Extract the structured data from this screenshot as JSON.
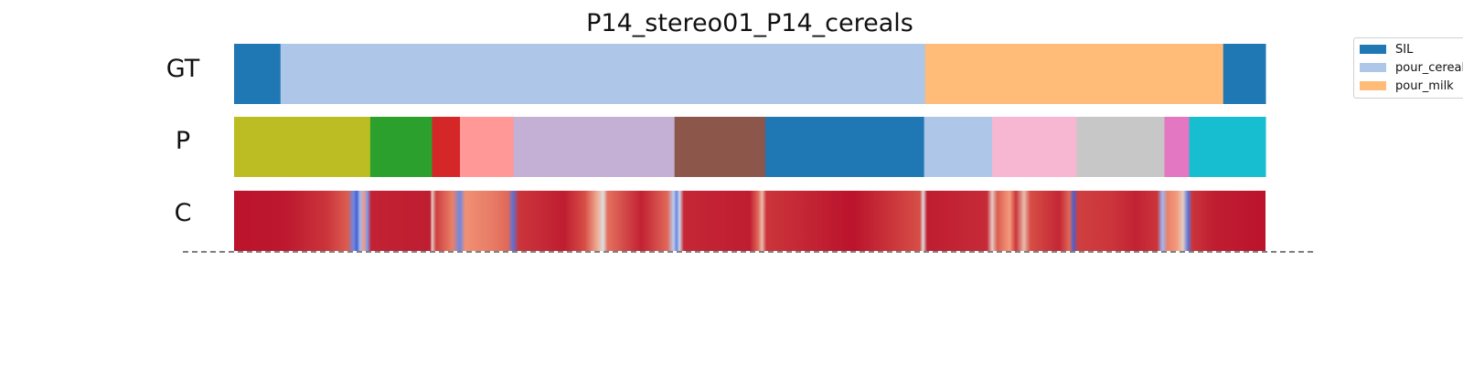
{
  "chart_data": {
    "type": "segmentation",
    "title": "P14_stereo01_P14_cereals",
    "rows": [
      {
        "label": "GT",
        "segments": [
          {
            "start": 0.0,
            "end": 0.045,
            "color": "#1f77b4",
            "legend": "SIL"
          },
          {
            "start": 0.045,
            "end": 0.67,
            "color": "#aec7e8",
            "legend": "pour_cereals"
          },
          {
            "start": 0.67,
            "end": 0.959,
            "color": "#ffbb78",
            "legend": "pour_milk"
          },
          {
            "start": 0.959,
            "end": 1.0,
            "color": "#1f77b4",
            "legend": "SIL"
          }
        ]
      },
      {
        "label": "P",
        "segments": [
          {
            "start": 0.0,
            "end": 0.132,
            "color": "#bcbd22"
          },
          {
            "start": 0.132,
            "end": 0.192,
            "color": "#2ca02c"
          },
          {
            "start": 0.192,
            "end": 0.219,
            "color": "#d62728"
          },
          {
            "start": 0.219,
            "end": 0.271,
            "color": "#ff9896"
          },
          {
            "start": 0.271,
            "end": 0.427,
            "color": "#c5b0d5"
          },
          {
            "start": 0.427,
            "end": 0.515,
            "color": "#8c564b"
          },
          {
            "start": 0.515,
            "end": 0.669,
            "color": "#1f77b4"
          },
          {
            "start": 0.669,
            "end": 0.735,
            "color": "#aec7e8"
          },
          {
            "start": 0.735,
            "end": 0.817,
            "color": "#f7b6d2"
          },
          {
            "start": 0.817,
            "end": 0.902,
            "color": "#c7c7c7"
          },
          {
            "start": 0.902,
            "end": 0.926,
            "color": "#e377c2"
          },
          {
            "start": 0.926,
            "end": 1.0,
            "color": "#17becf"
          }
        ]
      },
      {
        "label": "C",
        "colormap": "coolwarm",
        "confidence": [
          {
            "t": 0.0,
            "v": 0.97
          },
          {
            "t": 0.05,
            "v": 0.96
          },
          {
            "t": 0.09,
            "v": 0.9
          },
          {
            "t": 0.11,
            "v": 0.82
          },
          {
            "t": 0.116,
            "v": 0.15
          },
          {
            "t": 0.119,
            "v": 0.05
          },
          {
            "t": 0.122,
            "v": 0.3
          },
          {
            "t": 0.126,
            "v": 0.7
          },
          {
            "t": 0.129,
            "v": 0.2
          },
          {
            "t": 0.133,
            "v": 0.94
          },
          {
            "t": 0.19,
            "v": 0.95
          },
          {
            "t": 0.192,
            "v": 0.55
          },
          {
            "t": 0.196,
            "v": 0.88
          },
          {
            "t": 0.212,
            "v": 0.75
          },
          {
            "t": 0.219,
            "v": 0.15
          },
          {
            "t": 0.224,
            "v": 0.72
          },
          {
            "t": 0.25,
            "v": 0.76
          },
          {
            "t": 0.266,
            "v": 0.8
          },
          {
            "t": 0.27,
            "v": 0.1
          },
          {
            "t": 0.276,
            "v": 0.9
          },
          {
            "t": 0.32,
            "v": 0.95
          },
          {
            "t": 0.34,
            "v": 0.85
          },
          {
            "t": 0.352,
            "v": 0.65
          },
          {
            "t": 0.358,
            "v": 0.5
          },
          {
            "t": 0.362,
            "v": 0.78
          },
          {
            "t": 0.395,
            "v": 0.94
          },
          {
            "t": 0.42,
            "v": 0.8
          },
          {
            "t": 0.426,
            "v": 0.4
          },
          {
            "t": 0.429,
            "v": 0.15
          },
          {
            "t": 0.432,
            "v": 0.45
          },
          {
            "t": 0.436,
            "v": 0.93
          },
          {
            "t": 0.5,
            "v": 0.95
          },
          {
            "t": 0.508,
            "v": 0.8
          },
          {
            "t": 0.512,
            "v": 0.6
          },
          {
            "t": 0.516,
            "v": 0.9
          },
          {
            "t": 0.6,
            "v": 0.97
          },
          {
            "t": 0.665,
            "v": 0.85
          },
          {
            "t": 0.668,
            "v": 0.5
          },
          {
            "t": 0.672,
            "v": 0.95
          },
          {
            "t": 0.73,
            "v": 0.92
          },
          {
            "t": 0.735,
            "v": 0.55
          },
          {
            "t": 0.74,
            "v": 0.82
          },
          {
            "t": 0.752,
            "v": 0.7
          },
          {
            "t": 0.758,
            "v": 0.9
          },
          {
            "t": 0.766,
            "v": 0.6
          },
          {
            "t": 0.772,
            "v": 0.85
          },
          {
            "t": 0.8,
            "v": 0.93
          },
          {
            "t": 0.81,
            "v": 0.8
          },
          {
            "t": 0.814,
            "v": 0.05
          },
          {
            "t": 0.818,
            "v": 0.88
          },
          {
            "t": 0.85,
            "v": 0.9
          },
          {
            "t": 0.875,
            "v": 0.94
          },
          {
            "t": 0.895,
            "v": 0.9
          },
          {
            "t": 0.9,
            "v": 0.3
          },
          {
            "t": 0.905,
            "v": 0.75
          },
          {
            "t": 0.914,
            "v": 0.7
          },
          {
            "t": 0.92,
            "v": 0.55
          },
          {
            "t": 0.925,
            "v": 0.1
          },
          {
            "t": 0.929,
            "v": 0.9
          },
          {
            "t": 0.95,
            "v": 0.95
          },
          {
            "t": 1.0,
            "v": 0.97
          }
        ]
      }
    ],
    "legend": {
      "placement": "top-right",
      "entries": [
        {
          "label": "SIL",
          "color": "#1f77b4"
        },
        {
          "label": "pour_cereals",
          "color": "#aec7e8"
        },
        {
          "label": "pour_milk",
          "color": "#ffbb78"
        }
      ]
    },
    "baseline": {
      "style": "dashed",
      "color": "#555555"
    }
  }
}
